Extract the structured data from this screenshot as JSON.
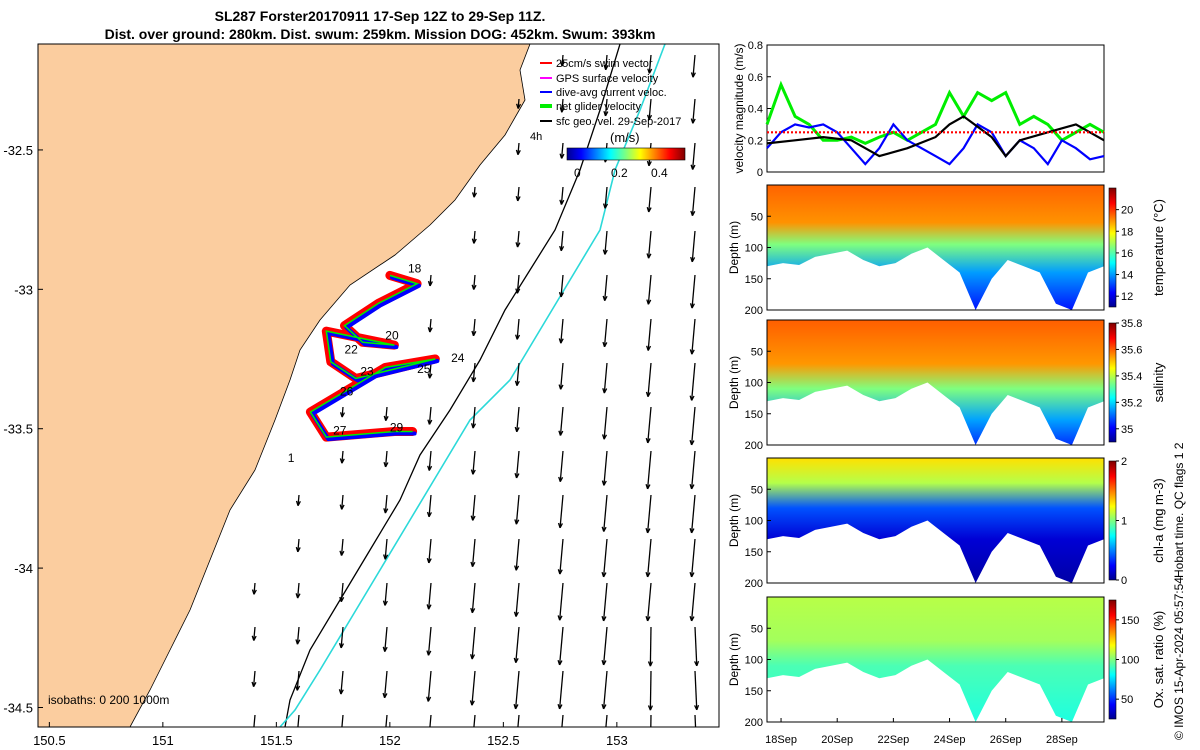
{
  "header": {
    "line1": "SL287 Forster20170911 17-Sep 12Z to 29-Sep 11Z.",
    "line2": "Dist. over ground: 280km. Dist. swum: 259km. Mission DOG: 452km. Swum: 393km"
  },
  "colors": {
    "land": "#fbcd9f",
    "glider_red": "#ff0000",
    "glider_blue": "#0000ff",
    "isobath_200": "#000000",
    "isobath_1000": "#2bd9d9",
    "green": "#00ee00"
  },
  "chart_data": [
    {
      "id": "map",
      "type": "scatter",
      "xlim": [
        150.45,
        153.45
      ],
      "ylim": [
        -34.57,
        -32.12
      ],
      "xticks": [
        150.5,
        151,
        151.5,
        152,
        152.5,
        153
      ],
      "xtick_labels": [
        "150.5",
        "151",
        "151.5",
        "152",
        "152.5",
        "153"
      ],
      "yticks": [
        -32.5,
        -33,
        -33.5,
        -34,
        -34.5
      ],
      "ytick_labels": [
        "-32.5",
        "-33",
        "-33.5",
        "-34",
        "-34.5"
      ],
      "legend": [
        {
          "label": "25cm/s swim vector",
          "color": "#ff0000"
        },
        {
          "label": "GPS surface velocity",
          "color": "#ff00ff"
        },
        {
          "label": "dive-avg current veloc.",
          "color": "#0000ff"
        },
        {
          "label": "net glider velocity",
          "color": "#00ee00"
        },
        {
          "label": "sfc geo. vel. 29-Sep-2017",
          "color": "#000000"
        }
      ],
      "timestep_label": "4h",
      "colorbar": {
        "label": "(m/s)",
        "ticks": [
          "0",
          "0.2",
          "0.4"
        ],
        "range": [
          0,
          0.5
        ]
      },
      "isobaths_label": "isobaths: 0  200  1000m",
      "track": [
        [
          152.0,
          -32.95
        ],
        [
          152.12,
          -32.98
        ],
        [
          151.95,
          -33.05
        ],
        [
          151.8,
          -33.13
        ],
        [
          151.88,
          -33.19
        ],
        [
          152.02,
          -33.2
        ],
        [
          151.72,
          -33.15
        ],
        [
          151.74,
          -33.26
        ],
        [
          151.85,
          -33.32
        ],
        [
          152.2,
          -33.25
        ],
        [
          151.98,
          -33.28
        ],
        [
          151.65,
          -33.44
        ],
        [
          151.72,
          -33.53
        ],
        [
          152.02,
          -33.51
        ],
        [
          152.1,
          -33.51
        ]
      ],
      "day_labels": [
        {
          "t": "18",
          "x": 152.08,
          "y": -32.94
        },
        {
          "t": "20",
          "x": 151.98,
          "y": -33.18
        },
        {
          "t": "22",
          "x": 151.8,
          "y": -33.23
        },
        {
          "t": "24",
          "x": 152.27,
          "y": -33.26
        },
        {
          "t": "25",
          "x": 152.12,
          "y": -33.3
        },
        {
          "t": "23",
          "x": 151.87,
          "y": -33.31
        },
        {
          "t": "26",
          "x": 151.78,
          "y": -33.38
        },
        {
          "t": "27",
          "x": 151.75,
          "y": -33.52
        },
        {
          "t": "29",
          "x": 152.0,
          "y": -33.51
        },
        {
          "t": "1",
          "x": 151.55,
          "y": -33.62
        }
      ]
    },
    {
      "id": "velocity",
      "type": "line",
      "ylabel": "velocity magnitude (m/s)",
      "ylim": [
        0,
        0.8
      ],
      "yticks": [
        0,
        0.2,
        0.4,
        0.6,
        0.8
      ],
      "yticklabels": [
        "0",
        "0.2",
        "0.4",
        "0.6",
        "0.8"
      ],
      "xlim": [
        17.5,
        29.5
      ],
      "series": [
        {
          "name": "net glider velocity",
          "color": "#00ee00",
          "x": [
            17.5,
            18,
            18.5,
            19,
            19.5,
            20,
            20.5,
            21,
            21.5,
            22,
            22.5,
            23,
            23.5,
            24,
            24.5,
            25,
            25.5,
            26,
            26.5,
            27,
            27.5,
            28,
            28.5,
            29,
            29.5
          ],
          "values": [
            0.3,
            0.55,
            0.35,
            0.3,
            0.2,
            0.2,
            0.22,
            0.18,
            0.22,
            0.25,
            0.2,
            0.25,
            0.3,
            0.5,
            0.35,
            0.5,
            0.45,
            0.5,
            0.3,
            0.35,
            0.3,
            0.2,
            0.25,
            0.3,
            0.25
          ]
        },
        {
          "name": "dive-avg current veloc.",
          "color": "#0000ff",
          "x": [
            17.5,
            18,
            18.5,
            19,
            19.5,
            20,
            20.5,
            21,
            21.5,
            22,
            22.5,
            23,
            23.5,
            24,
            24.5,
            25,
            25.5,
            26,
            26.5,
            27,
            27.5,
            28,
            28.5,
            29,
            29.5
          ],
          "values": [
            0.15,
            0.25,
            0.3,
            0.28,
            0.3,
            0.25,
            0.15,
            0.05,
            0.15,
            0.3,
            0.2,
            0.15,
            0.1,
            0.05,
            0.15,
            0.3,
            0.25,
            0.1,
            0.2,
            0.15,
            0.05,
            0.2,
            0.15,
            0.08,
            0.1
          ]
        },
        {
          "name": "sfc geo. vel.",
          "color": "#000000",
          "x": [
            17.5,
            18.5,
            19.5,
            20.5,
            21.5,
            22.5,
            23.5,
            24,
            24.5,
            25.5,
            26,
            26.5,
            27.5,
            28.5,
            29.5
          ],
          "values": [
            0.18,
            0.2,
            0.22,
            0.2,
            0.1,
            0.15,
            0.22,
            0.3,
            0.35,
            0.22,
            0.1,
            0.2,
            0.25,
            0.3,
            0.2
          ]
        },
        {
          "name": "swim speed",
          "color": "#ff0000",
          "x": [
            17.5,
            29.5
          ],
          "values": [
            0.25,
            0.25
          ]
        }
      ]
    },
    {
      "id": "temperature",
      "type": "heatmap",
      "ylabel": "Depth (m)",
      "ylim": [
        0,
        200
      ],
      "yticks": [
        50,
        100,
        150,
        200
      ],
      "yticklabels": [
        "50",
        "100",
        "150",
        "200"
      ],
      "colorbar": {
        "label": "temperature (°C)",
        "range": [
          11,
          22
        ],
        "ticks": [
          "12",
          "14",
          "16",
          "18",
          "20"
        ]
      },
      "bottom_depth_profile": [
        130,
        125,
        128,
        115,
        110,
        105,
        120,
        130,
        125,
        110,
        100,
        120,
        140,
        200,
        150,
        120,
        130,
        140,
        190,
        200,
        140,
        130
      ],
      "layers": [
        {
          "depth": 0,
          "value": 19.5
        },
        {
          "depth": 60,
          "value": 19
        },
        {
          "depth": 95,
          "value": 16.5
        },
        {
          "depth": 140,
          "value": 14
        },
        {
          "depth": 200,
          "value": 12.5
        }
      ]
    },
    {
      "id": "salinity",
      "type": "heatmap",
      "ylabel": "Depth (m)",
      "ylim": [
        0,
        200
      ],
      "yticks": [
        50,
        100,
        150,
        200
      ],
      "yticklabels": [
        "50",
        "100",
        "150",
        "200"
      ],
      "colorbar": {
        "label": "salinity",
        "range": [
          34.9,
          35.8
        ],
        "ticks": [
          "35",
          "35.2",
          "35.4",
          "35.6",
          "35.8"
        ]
      },
      "layers": [
        {
          "depth": 0,
          "value": 35.6
        },
        {
          "depth": 70,
          "value": 35.55
        },
        {
          "depth": 110,
          "value": 35.35
        },
        {
          "depth": 160,
          "value": 35.15
        },
        {
          "depth": 200,
          "value": 35.05
        }
      ]
    },
    {
      "id": "chla",
      "type": "heatmap",
      "ylabel": "Depth (m)",
      "ylim": [
        0,
        200
      ],
      "yticks": [
        50,
        100,
        150,
        200
      ],
      "yticklabels": [
        "50",
        "100",
        "150",
        "200"
      ],
      "colorbar": {
        "label": "chl-a (mg m-3)",
        "range": [
          0,
          2
        ],
        "ticks": [
          "0",
          "1",
          "2"
        ]
      },
      "layers": [
        {
          "depth": 0,
          "value": 1.3
        },
        {
          "depth": 40,
          "value": 1.1
        },
        {
          "depth": 80,
          "value": 0.4
        },
        {
          "depth": 130,
          "value": 0.15
        },
        {
          "depth": 200,
          "value": 0.05
        }
      ]
    },
    {
      "id": "oxygen",
      "type": "heatmap",
      "ylabel": "Depth (m)",
      "ylim": [
        0,
        200
      ],
      "yticks": [
        50,
        100,
        150,
        200
      ],
      "yticklabels": [
        "50",
        "100",
        "150",
        "200"
      ],
      "colorbar": {
        "label": "Ox. sat. ratio (%)",
        "range": [
          25,
          175
        ],
        "ticks": [
          "50",
          "100",
          "150"
        ]
      },
      "xtick_labels": [
        "18Sep",
        "20Sep",
        "22Sep",
        "24Sep",
        "26Sep",
        "28Sep"
      ],
      "xticks": [
        18,
        20,
        22,
        24,
        26,
        28
      ],
      "layers": [
        {
          "depth": 0,
          "value": 108
        },
        {
          "depth": 70,
          "value": 105
        },
        {
          "depth": 110,
          "value": 92
        },
        {
          "depth": 200,
          "value": 85
        }
      ]
    }
  ],
  "footer": {
    "qc_label": "Hobart time. QC flags 1  2",
    "copyright": "© IMOS 15-Apr-2024 05:57:54"
  }
}
